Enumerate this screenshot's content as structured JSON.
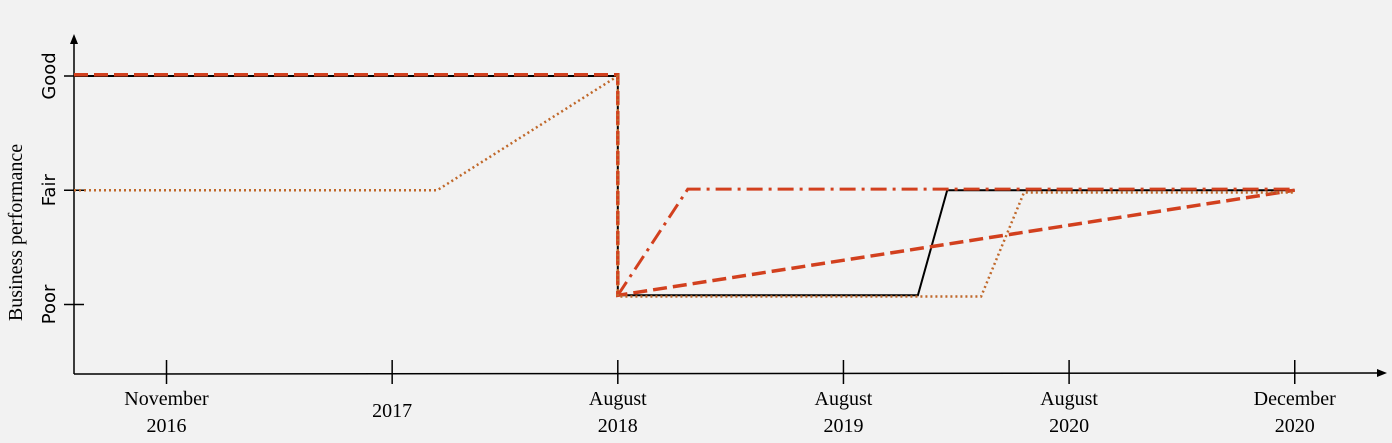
{
  "chart_data": {
    "type": "line",
    "ylabel": "Business performance",
    "xlabel": "",
    "y_categories": [
      "Poor",
      "Fair",
      "Good"
    ],
    "x_ticks": [
      {
        "x": 0,
        "line1": "November",
        "line2": "2016"
      },
      {
        "x": 1,
        "line1": "2017",
        "line2": ""
      },
      {
        "x": 2,
        "line1": "August",
        "line2": "2018"
      },
      {
        "x": 3,
        "line1": "August",
        "line2": "2019"
      },
      {
        "x": 4,
        "line1": "August",
        "line2": "2020"
      },
      {
        "x": 5,
        "line1": "December",
        "line2": "2020"
      }
    ],
    "xlim": [
      -0.41,
      5.4
    ],
    "ylim": [
      -0.6,
      2.35
    ],
    "grid": false,
    "legend": "none",
    "series": [
      {
        "style": "solid",
        "color": "#000000",
        "x": [
          -0.41,
          2.0,
          2.0,
          2.0,
          3.33,
          3.46,
          5.0
        ],
        "y": [
          2.0,
          2.0,
          2.0,
          0.08,
          0.08,
          1.0,
          1.0
        ]
      },
      {
        "style": "dashed",
        "color": "#d2401e",
        "x": [
          -0.41,
          2.0,
          2.0,
          2.0,
          5.0
        ],
        "y": [
          2.01,
          2.01,
          2.0,
          0.08,
          1.0
        ]
      },
      {
        "style": "dashdot",
        "color": "#d2401e",
        "x": [
          2.0,
          2.31,
          5.0
        ],
        "y": [
          0.08,
          1.01,
          1.01
        ]
      },
      {
        "style": "dotted",
        "color": "#c0682a",
        "x": [
          -0.41,
          1.2,
          2.0,
          2.0,
          2.0,
          3.61,
          3.8,
          5.0
        ],
        "y": [
          1.0,
          1.0,
          2.0,
          2.0,
          0.07,
          0.07,
          0.98,
          0.98
        ]
      }
    ]
  }
}
